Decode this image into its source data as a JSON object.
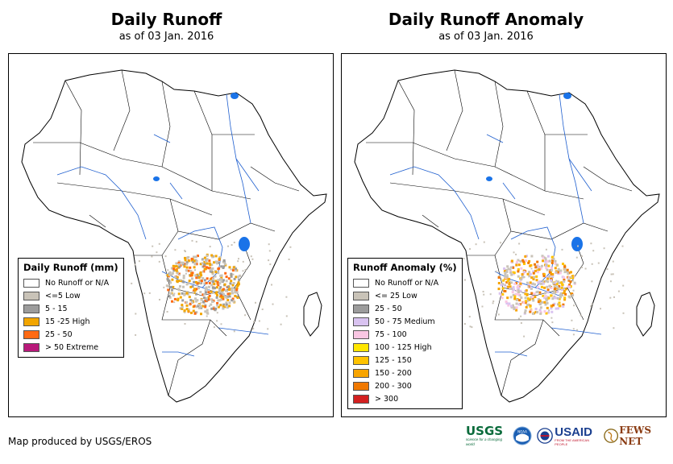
{
  "maps": [
    {
      "title": "Daily Runoff",
      "subtitle": "as of 03 Jan. 2016",
      "legend": {
        "title": "Daily Runoff (mm)",
        "items": [
          {
            "label": "No Runoff or N/A",
            "color": "#ffffff"
          },
          {
            "label": "<=5 Low",
            "color": "#c9c3b8"
          },
          {
            "label": "5 - 15",
            "color": "#9c9c9c"
          },
          {
            "label": "15 -25 High",
            "color": "#f2a500"
          },
          {
            "label": "25 - 50",
            "color": "#ff6a13"
          },
          {
            "label": "> 50 Extreme",
            "color": "#b8197a"
          }
        ]
      }
    },
    {
      "title": "Daily Runoff Anomaly",
      "subtitle": "as of 03 Jan. 2016",
      "legend": {
        "title": "Runoff Anomaly (%)",
        "items": [
          {
            "label": "No Runoff or N/A",
            "color": "#ffffff"
          },
          {
            "label": "<= 25 Low",
            "color": "#c9c3b8"
          },
          {
            "label": "25 - 50",
            "color": "#9c9c9c"
          },
          {
            "label": "50 - 75 Medium",
            "color": "#d9c3f0"
          },
          {
            "label": "75 - 100",
            "color": "#f9c6e3"
          },
          {
            "label": "100 - 125 High",
            "color": "#ffe600"
          },
          {
            "label": "125 - 150",
            "color": "#ffc300"
          },
          {
            "label": "150 - 200",
            "color": "#f7a400"
          },
          {
            "label": "200 - 300",
            "color": "#f07800"
          },
          {
            "label": "> 300",
            "color": "#d32020"
          }
        ]
      }
    }
  ],
  "credit": "Map produced by USGS/EROS",
  "logos": {
    "usgs": "USGS",
    "usgs_tagline": "science for a changing world",
    "noaa": "NOAA",
    "usaid": "USAID",
    "usaid_tagline": "FROM THE AMERICAN PEOPLE",
    "fewsnet": "FEWS NET"
  },
  "colors": {
    "river": "#1f5fcf",
    "lake": "#1a73e8",
    "border": "#000000"
  }
}
